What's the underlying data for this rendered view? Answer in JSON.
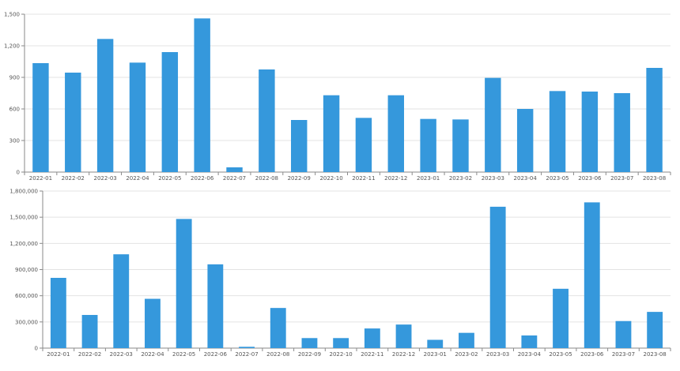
{
  "colors": {
    "bar": "#3598dc",
    "grid": "#e3e3e3",
    "axis": "#8a8a8a",
    "text": "#555555"
  },
  "chart_data": [
    {
      "type": "bar",
      "title": "",
      "xlabel": "",
      "ylabel": "",
      "categories": [
        "2022-01",
        "2022-02",
        "2022-03",
        "2022-04",
        "2022-05",
        "2022-06",
        "2022-07",
        "2022-08",
        "2022-09",
        "2022-10",
        "2022-11",
        "2022-12",
        "2023-01",
        "2023-02",
        "2023-03",
        "2023-04",
        "2023-05",
        "2023-06",
        "2023-07",
        "2023-08"
      ],
      "values": [
        1035,
        945,
        1265,
        1040,
        1140,
        1460,
        45,
        975,
        495,
        730,
        515,
        730,
        505,
        500,
        895,
        600,
        770,
        765,
        750,
        990
      ],
      "ylim": [
        0,
        1500
      ],
      "yticks": [
        0,
        300,
        600,
        900,
        1200,
        1500
      ],
      "ytick_labels": [
        "0",
        "300",
        "600",
        "900",
        "1,200",
        "1,500"
      ],
      "grid": true,
      "legend": "none"
    },
    {
      "type": "bar",
      "title": "",
      "xlabel": "",
      "ylabel": "",
      "categories": [
        "2022-01",
        "2022-02",
        "2022-03",
        "2022-04",
        "2022-05",
        "2022-06",
        "2022-07",
        "2022-08",
        "2022-09",
        "2022-10",
        "2022-11",
        "2022-12",
        "2023-01",
        "2023-02",
        "2023-03",
        "2023-04",
        "2023-05",
        "2023-06",
        "2023-07",
        "2023-08"
      ],
      "values": [
        805000,
        380000,
        1075000,
        565000,
        1480000,
        960000,
        15000,
        460000,
        115000,
        115000,
        225000,
        270000,
        95000,
        175000,
        1620000,
        145000,
        680000,
        1670000,
        310000,
        415000
      ],
      "ylim": [
        0,
        1800000
      ],
      "yticks": [
        0,
        300000,
        600000,
        900000,
        1200000,
        1500000,
        1800000
      ],
      "ytick_labels": [
        "0",
        "300,000",
        "600,000",
        "900,000",
        "1,200,000",
        "1,500,000",
        "1,800,000"
      ],
      "grid": true,
      "legend": "none"
    }
  ]
}
